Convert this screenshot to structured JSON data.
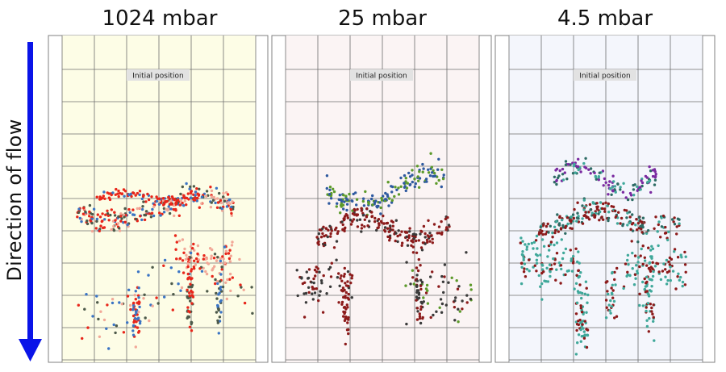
{
  "axis_label": "Direction of flow",
  "colors": {
    "arrow": "#0a14e8",
    "grid": "#6e6e6e",
    "frame": "#808080",
    "label_box": "#e2e2e2"
  },
  "panels": [
    {
      "title": "1024 mbar",
      "annotation": "Initial position",
      "background": "#fdfde6",
      "highlight_column": {
        "from": 2,
        "to": 6
      },
      "point_colors": [
        "#e8261a",
        "#3a74c4",
        "#4d5a4a",
        "#f2a898"
      ]
    },
    {
      "title": "25 mbar",
      "annotation": "Initial position",
      "background": "#fbf4f4",
      "highlight_column": null,
      "point_colors": [
        "#8c1a1a",
        "#2f5aa0",
        "#5c9a2a",
        "#3a3a3a"
      ]
    },
    {
      "title": "4.5 mbar",
      "annotation": "Initial position",
      "background": "#f4f6fc",
      "highlight_column": null,
      "point_colors": [
        "#3fa89a",
        "#8c1a1a",
        "#7a2aa0",
        "#2d6b64"
      ]
    }
  ],
  "chart_data": {
    "type": "scatter",
    "title": "",
    "xlabel": "",
    "ylabel": "Direction of flow",
    "grid": true,
    "legend": "none",
    "series": [
      {
        "name": "1024 mbar"
      },
      {
        "name": "25 mbar"
      },
      {
        "name": "4.5 mbar"
      }
    ]
  }
}
